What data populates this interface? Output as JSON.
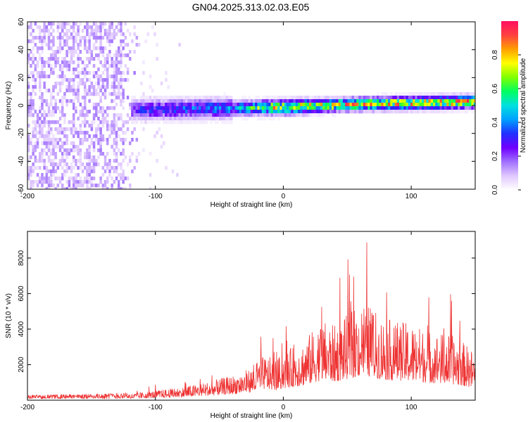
{
  "title": "GN04.2025.313.02.03.E05",
  "chart_data": [
    {
      "type": "heatmap",
      "xlabel": "Height of straight line (km)",
      "ylabel": "Frequency (Hz)",
      "xlim": [
        -200,
        150
      ],
      "ylim": [
        -60,
        60
      ],
      "xticks": [
        -200,
        -100,
        0,
        100
      ],
      "yticks": [
        -60,
        -40,
        -20,
        0,
        20,
        40,
        60
      ],
      "colorbar": {
        "label": "Normalized spectral amplitude",
        "range": [
          0,
          1
        ],
        "ticks": [
          0.0,
          0.2,
          0.4,
          0.6,
          0.8
        ],
        "tick_labels": [
          "0.0",
          "0.2",
          "0.4",
          "0.6",
          "0.8"
        ],
        "colormap": [
          "#ffffff",
          "#e0c8ff",
          "#a070ff",
          "#7000ff",
          "#2030ff",
          "#00a0ff",
          "#00e0e0",
          "#00ff60",
          "#80ff00",
          "#ffff00",
          "#ffa000",
          "#ff4040",
          "#ff1060"
        ]
      },
      "description_of_structure": {
        "noisy_region_x": [
          -200,
          -115
        ],
        "noisy_amplitude": 0.1,
        "signal_band_start_x": -120,
        "signal_band_center_hz": [
          [
            -120,
            -2
          ],
          [
            -60,
            -1
          ],
          [
            0,
            0
          ],
          [
            50,
            2
          ],
          [
            100,
            3
          ],
          [
            150,
            4
          ]
        ],
        "signal_band_peak_amplitude": [
          [
            -120,
            0.3
          ],
          [
            -40,
            0.45
          ],
          [
            -10,
            0.8
          ],
          [
            40,
            0.85
          ],
          [
            100,
            0.85
          ],
          [
            150,
            0.9
          ]
        ]
      }
    },
    {
      "type": "line",
      "xlabel": "Height of straight line (km)",
      "ylabel": "SNR (10 * v/v)",
      "xlim": [
        -200,
        150
      ],
      "ylim": [
        0,
        9500
      ],
      "xticks": [
        -200,
        -100,
        0,
        100
      ],
      "yticks": [
        2000,
        4000,
        6000,
        8000
      ],
      "color": "#ee3333",
      "envelope": [
        [
          -200,
          350
        ],
        [
          -150,
          450
        ],
        [
          -120,
          600
        ],
        [
          -100,
          900
        ],
        [
          -80,
          1200
        ],
        [
          -60,
          1700
        ],
        [
          -40,
          2300
        ],
        [
          -25,
          3000
        ],
        [
          -15,
          4200
        ],
        [
          -5,
          3800
        ],
        [
          0,
          4500
        ],
        [
          15,
          5500
        ],
        [
          30,
          7500
        ],
        [
          40,
          7000
        ],
        [
          55,
          8500
        ],
        [
          63,
          9400
        ],
        [
          75,
          8000
        ],
        [
          85,
          7500
        ],
        [
          100,
          7200
        ],
        [
          115,
          6500
        ],
        [
          130,
          6200
        ],
        [
          140,
          5500
        ],
        [
          150,
          4500
        ]
      ],
      "noise_floor_ratio": 0.25
    }
  ]
}
